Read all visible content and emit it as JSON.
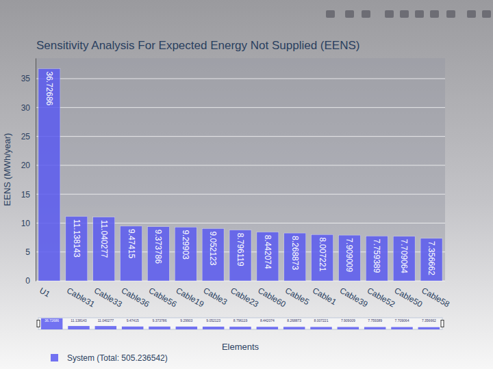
{
  "chart_data": {
    "type": "bar",
    "title": "Sensitivity Analysis For Expected Energy Not Supplied (EENS)",
    "x_label": "Elements",
    "y_label": "EENS (MWh/year)",
    "categories": [
      "U1",
      "Cable31",
      "Cable33",
      "Cable36",
      "Cable56",
      "Cable19",
      "Cable3",
      "Cable23",
      "Cable60",
      "Cable5",
      "Cable1",
      "Cable39",
      "Cable52",
      "Cable50",
      "Cable58"
    ],
    "series": [
      {
        "name": "System (Total: 505.236542)",
        "color": "#5a5af0",
        "values": [
          36.72686,
          11.138143,
          11.040277,
          9.47415,
          9.373786,
          9.29903,
          9.052123,
          8.796119,
          8.442074,
          8.268873,
          8.007221,
          7.909009,
          7.759389,
          7.709064,
          7.356662
        ]
      }
    ],
    "ylim": [
      0,
      38.56
    ],
    "yticks": [
      0,
      5,
      10,
      15,
      20,
      25,
      30,
      35
    ],
    "grid": true,
    "data_labels": true,
    "legend": "bottom-left"
  }
}
